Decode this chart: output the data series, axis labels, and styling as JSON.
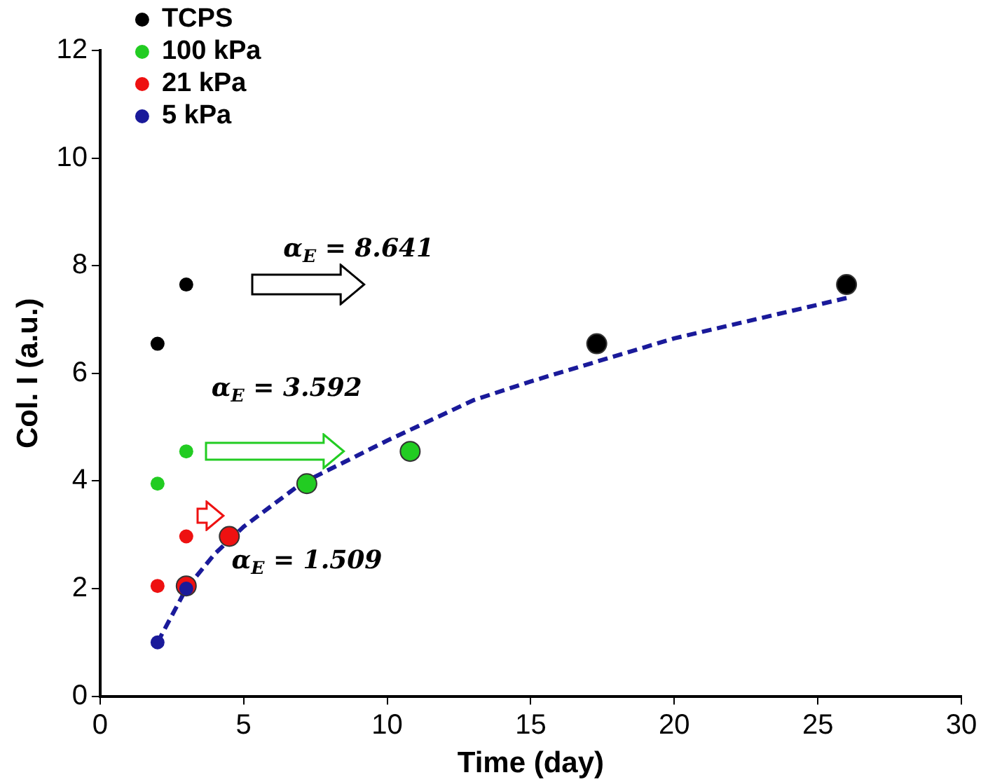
{
  "chart_data": {
    "type": "scatter",
    "xlabel": "Time (day)",
    "ylabel": "Col. I (a.u.)",
    "xlim": [
      0,
      30
    ],
    "xticks": [
      0,
      5,
      10,
      15,
      20,
      25,
      30
    ],
    "ylim": [
      0,
      12
    ],
    "yticks": [
      0,
      2,
      4,
      6,
      8,
      10,
      12
    ],
    "grid": false,
    "legend": "top left",
    "marker": "circle",
    "series": [
      {
        "name": "TCPS",
        "color": "#000000",
        "x": [
          2,
          3
        ],
        "values": [
          6.55,
          7.65
        ]
      },
      {
        "name": "100 kPa",
        "color": "#22cc22",
        "x": [
          2,
          3
        ],
        "values": [
          3.95,
          4.55
        ]
      },
      {
        "name": "21 kPa",
        "color": "#ee1111",
        "x": [
          2,
          3
        ],
        "values": [
          2.05,
          2.97
        ]
      },
      {
        "name": "5 kPa",
        "color": "#1a1a9a",
        "x": [
          2,
          3
        ],
        "values": [
          1.0,
          2.0
        ]
      },
      {
        "color": "#000000",
        "x": [
          17.3,
          26
        ],
        "values": [
          6.55,
          7.65
        ]
      },
      {
        "color": "#22cc22",
        "x": [
          7.2,
          10.8
        ],
        "values": [
          3.95,
          4.55
        ]
      },
      {
        "color": "#ee1111",
        "x": [
          3,
          4.5
        ],
        "values": [
          2.05,
          2.97
        ]
      },
      {
        "type": "line",
        "line_style": "dashed",
        "marker": "none",
        "color": "#1a1a9a",
        "x": [
          2,
          3,
          4,
          5,
          7,
          10,
          13,
          15,
          20,
          26
        ],
        "values": [
          1.0,
          2.0,
          2.65,
          3.15,
          3.95,
          4.75,
          5.5,
          5.85,
          6.65,
          7.4
        ]
      }
    ],
    "annotations": [
      "α$_{E}$ = 8.641",
      "α$_{E}$ = 3.592",
      "α$_{E}$ = 1.509"
    ]
  }
}
